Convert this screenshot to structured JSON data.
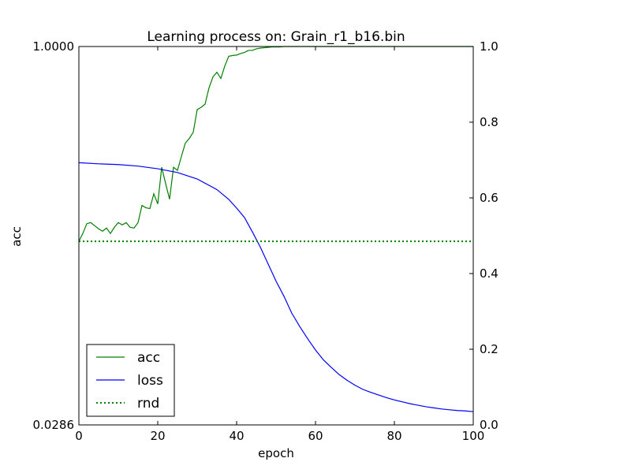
{
  "chart_data": {
    "type": "line",
    "title": "Learning process on: Grain_r1_b16.bin",
    "xlabel": "epoch",
    "ylabel": "acc",
    "xlim": [
      0,
      100
    ],
    "x_ticks": [
      "0",
      "20",
      "40",
      "60",
      "80",
      "100"
    ],
    "y_left_ticks": [
      "1.0000",
      "0.0286"
    ],
    "ylim_left": [
      0.0286,
      1.0
    ],
    "ylim_right": [
      0.0,
      1.0
    ],
    "y_right_ticks": [
      "0.0",
      "0.2",
      "0.4",
      "0.6",
      "0.8",
      "1.0"
    ],
    "grid": false,
    "legend_position": "lower-left",
    "series": [
      {
        "name": "acc",
        "axis": "left",
        "color": "#008000",
        "style": "solid",
        "x": [
          0,
          1,
          2,
          3,
          4,
          5,
          6,
          7,
          8,
          9,
          10,
          11,
          12,
          13,
          14,
          15,
          16,
          17,
          18,
          19,
          20,
          21,
          22,
          23,
          24,
          25,
          26,
          27,
          28,
          29,
          30,
          31,
          32,
          33,
          34,
          35,
          36,
          37,
          38,
          39,
          40,
          41,
          42,
          43,
          44,
          45,
          46,
          47,
          48,
          49,
          50,
          51,
          52,
          53,
          54,
          55,
          56,
          57,
          58,
          59,
          60,
          61,
          62,
          63,
          64,
          65,
          66,
          67,
          68,
          69,
          70,
          71,
          72,
          73,
          74,
          75,
          76,
          77,
          78,
          79,
          80,
          81,
          82,
          83,
          84,
          85,
          86,
          87,
          88,
          89,
          90,
          91,
          92,
          93,
          94,
          95,
          96,
          97,
          98,
          99,
          100
        ],
        "values": [
          0.5,
          0.52,
          0.545,
          0.548,
          0.54,
          0.532,
          0.526,
          0.534,
          0.52,
          0.536,
          0.548,
          0.542,
          0.548,
          0.536,
          0.534,
          0.548,
          0.592,
          0.586,
          0.584,
          0.622,
          0.596,
          0.69,
          0.648,
          0.608,
          0.69,
          0.682,
          0.718,
          0.752,
          0.764,
          0.78,
          0.838,
          0.844,
          0.852,
          0.894,
          0.922,
          0.934,
          0.918,
          0.95,
          0.975,
          0.977,
          0.978,
          0.982,
          0.985,
          0.99,
          0.99,
          0.994,
          0.996,
          0.997,
          0.998,
          0.999,
          0.999,
          0.999,
          1.0,
          1.0,
          1.0,
          1.0,
          1.0,
          1.0,
          1.0,
          1.0,
          1.0,
          1.0,
          1.0,
          1.0,
          1.0,
          1.0,
          1.0,
          1.0,
          1.0,
          1.0,
          1.0,
          1.0,
          1.0,
          1.0,
          1.0,
          1.0,
          1.0,
          1.0,
          1.0,
          1.0,
          1.0,
          1.0,
          1.0,
          1.0,
          1.0,
          1.0,
          1.0,
          1.0,
          1.0,
          1.0,
          1.0,
          1.0,
          1.0,
          1.0,
          1.0,
          1.0,
          1.0,
          1.0,
          1.0,
          1.0,
          1.0
        ]
      },
      {
        "name": "loss",
        "axis": "right",
        "color": "#0000ff",
        "style": "solid",
        "x": [
          0,
          5,
          10,
          15,
          20,
          25,
          30,
          35,
          38,
          40,
          42,
          44,
          46,
          48,
          50,
          52,
          54,
          56,
          58,
          60,
          62,
          64,
          66,
          68,
          70,
          72,
          74,
          76,
          78,
          80,
          82,
          84,
          86,
          88,
          90,
          92,
          94,
          96,
          98,
          100
        ],
        "values": [
          0.693,
          0.69,
          0.688,
          0.684,
          0.677,
          0.667,
          0.65,
          0.622,
          0.596,
          0.573,
          0.548,
          0.51,
          0.47,
          0.425,
          0.38,
          0.34,
          0.295,
          0.26,
          0.228,
          0.198,
          0.172,
          0.152,
          0.133,
          0.118,
          0.105,
          0.094,
          0.086,
          0.079,
          0.072,
          0.066,
          0.061,
          0.056,
          0.052,
          0.048,
          0.045,
          0.042,
          0.04,
          0.038,
          0.037,
          0.035
        ]
      },
      {
        "name": "rnd",
        "axis": "left",
        "color": "#008000",
        "style": "dotted",
        "x": [
          0,
          100
        ],
        "values": [
          0.5,
          0.5
        ]
      },
      {
        "name": "",
        "axis": "left",
        "color": "#000000",
        "style": "dotted",
        "x": [
          0,
          100
        ],
        "values": [
          0.0286,
          0.0286
        ]
      }
    ]
  }
}
